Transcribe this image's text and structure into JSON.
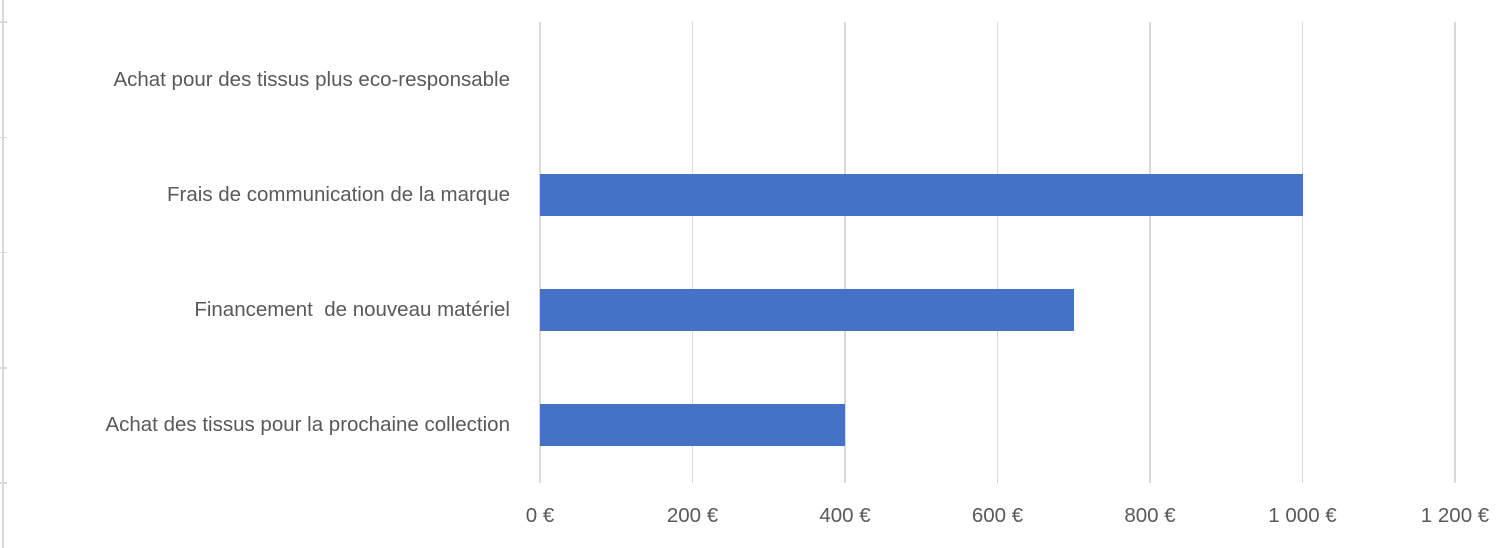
{
  "chart_data": {
    "type": "bar",
    "orientation": "horizontal",
    "title": "",
    "xlabel": "",
    "ylabel": "",
    "categories": [
      "Achat pour des tissus plus eco-responsable",
      "Frais de communication de la marque",
      "Financement  de nouveau matériel",
      "Achat des tissus pour la prochaine collection"
    ],
    "values": [
      0,
      1000,
      700,
      400
    ],
    "xlim": [
      0,
      1200
    ],
    "x_ticks": [
      0,
      200,
      400,
      600,
      800,
      1000,
      1200
    ],
    "x_tick_labels": [
      "0 €",
      "200 €",
      "400 €",
      "600 €",
      "800 €",
      "1 000 €",
      "1 200 €"
    ],
    "grid": "vertical-only",
    "legend": "none",
    "currency_unit": "€"
  },
  "style": {
    "bar_color": "#4472C4",
    "text_color": "#595959",
    "gridline_color": "#D9D9D9",
    "axis_color": "#D9D9D9",
    "background_color": "#FFFFFF"
  }
}
